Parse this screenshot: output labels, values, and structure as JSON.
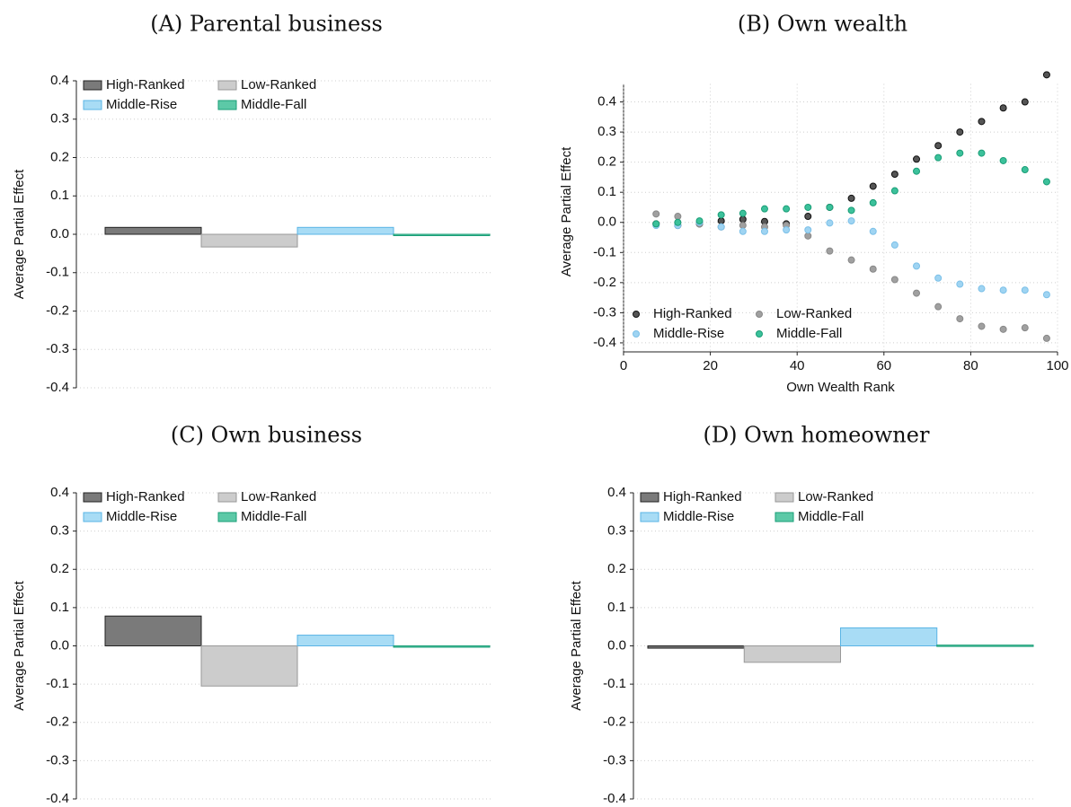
{
  "chart_data": [
    {
      "type": "bar",
      "title": "(A) Parental business",
      "ylabel": "Average Partial Effect",
      "ylim": [
        -0.4,
        0.4
      ],
      "yticks": [
        0.4,
        0.3,
        0.2,
        0.1,
        {
          "value": 0,
          "label": "0.0"
        },
        -0.1,
        -0.2,
        -0.3,
        -0.4
      ],
      "grid": true,
      "legend": "upper left",
      "series": [
        {
          "name": "High-Ranked",
          "color": "#7a7a7a",
          "values": [
            0.018
          ]
        },
        {
          "name": "Low-Ranked",
          "color": "#cccccc",
          "values": [
            -0.033
          ]
        },
        {
          "name": "Middle-Rise",
          "color": "#a8dcf5",
          "values": [
            0.018
          ]
        },
        {
          "name": "Middle-Fall",
          "color": "#5cc9a7",
          "values": [
            -0.003
          ]
        }
      ]
    },
    {
      "type": "scatter",
      "title": "(B) Own wealth",
      "ylabel": "Average Partial Effect",
      "xlabel": "Own Wealth Rank",
      "xlim": [
        0,
        100
      ],
      "xticks": [
        0,
        20,
        40,
        60,
        80,
        100
      ],
      "ylim": [
        -0.43,
        0.5
      ],
      "yticks": [
        0.4,
        0.3,
        0.2,
        0.1,
        {
          "value": 0,
          "label": "0.0"
        },
        -0.1,
        -0.2,
        -0.3,
        -0.4
      ],
      "grid": true,
      "legend": "lower left",
      "x": [
        7.5,
        12.5,
        17.5,
        22.5,
        27.5,
        32.5,
        37.5,
        42.5,
        47.5,
        52.5,
        57.5,
        62.5,
        67.5,
        72.5,
        77.5,
        82.5,
        87.5,
        92.5,
        97.5
      ],
      "series": [
        {
          "name": "High-Ranked",
          "color": "#555555",
          "values": [
            -0.005,
            -0.01,
            -0.005,
            0.005,
            0.01,
            0.003,
            -0.005,
            0.02,
            0.05,
            0.08,
            0.12,
            0.16,
            0.21,
            0.255,
            0.3,
            0.335,
            0.38,
            0.4,
            0.49
          ]
        },
        {
          "name": "Low-Ranked",
          "color": "#a0a0a0",
          "values": [
            0.028,
            0.02,
            -0.005,
            -0.015,
            -0.01,
            -0.015,
            -0.01,
            -0.045,
            -0.095,
            -0.125,
            -0.155,
            -0.19,
            -0.235,
            -0.28,
            -0.32,
            -0.345,
            -0.355,
            -0.35,
            -0.385
          ]
        },
        {
          "name": "Middle-Rise",
          "color": "#9fd4f2",
          "values": [
            -0.01,
            -0.01,
            0.0,
            -0.015,
            -0.03,
            -0.03,
            -0.025,
            -0.025,
            -0.002,
            0.005,
            -0.03,
            -0.075,
            -0.145,
            -0.185,
            -0.205,
            -0.22,
            -0.225,
            -0.225,
            -0.24
          ]
        },
        {
          "name": "Middle-Fall",
          "color": "#3cc19b",
          "values": [
            -0.005,
            0.0,
            0.005,
            0.025,
            0.03,
            0.045,
            0.045,
            0.05,
            0.05,
            0.04,
            0.065,
            0.105,
            0.17,
            0.215,
            0.23,
            0.23,
            0.205,
            0.175,
            0.135
          ]
        }
      ]
    },
    {
      "type": "bar",
      "title": "(C) Own business",
      "ylabel": "Average Partial Effect",
      "ylim": [
        -0.4,
        0.4
      ],
      "yticks": [
        0.4,
        0.3,
        0.2,
        0.1,
        {
          "value": 0,
          "label": "0.0"
        },
        -0.1,
        -0.2,
        -0.3,
        -0.4
      ],
      "grid": true,
      "legend": "upper left",
      "series": [
        {
          "name": "High-Ranked",
          "color": "#7a7a7a",
          "values": [
            0.078
          ]
        },
        {
          "name": "Low-Ranked",
          "color": "#cccccc",
          "values": [
            -0.105
          ]
        },
        {
          "name": "Middle-Rise",
          "color": "#a8dcf5",
          "values": [
            0.028
          ]
        },
        {
          "name": "Middle-Fall",
          "color": "#5cc9a7",
          "values": [
            -0.002
          ]
        }
      ]
    },
    {
      "type": "bar",
      "title": "(D) Own homeowner",
      "ylabel": "Average Partial Effect",
      "ylim": [
        -0.4,
        0.4
      ],
      "yticks": [
        0.4,
        0.3,
        0.2,
        0.1,
        {
          "value": 0,
          "label": "0.0"
        },
        -0.1,
        -0.2,
        -0.3,
        -0.4
      ],
      "grid": true,
      "legend": "upper left",
      "series": [
        {
          "name": "High-Ranked",
          "color": "#7a7a7a",
          "values": [
            -0.006
          ]
        },
        {
          "name": "Low-Ranked",
          "color": "#cccccc",
          "values": [
            -0.043
          ]
        },
        {
          "name": "Middle-Rise",
          "color": "#a8dcf5",
          "values": [
            0.047
          ]
        },
        {
          "name": "Middle-Fall",
          "color": "#5cc9a7",
          "values": [
            0.002
          ]
        }
      ]
    }
  ]
}
